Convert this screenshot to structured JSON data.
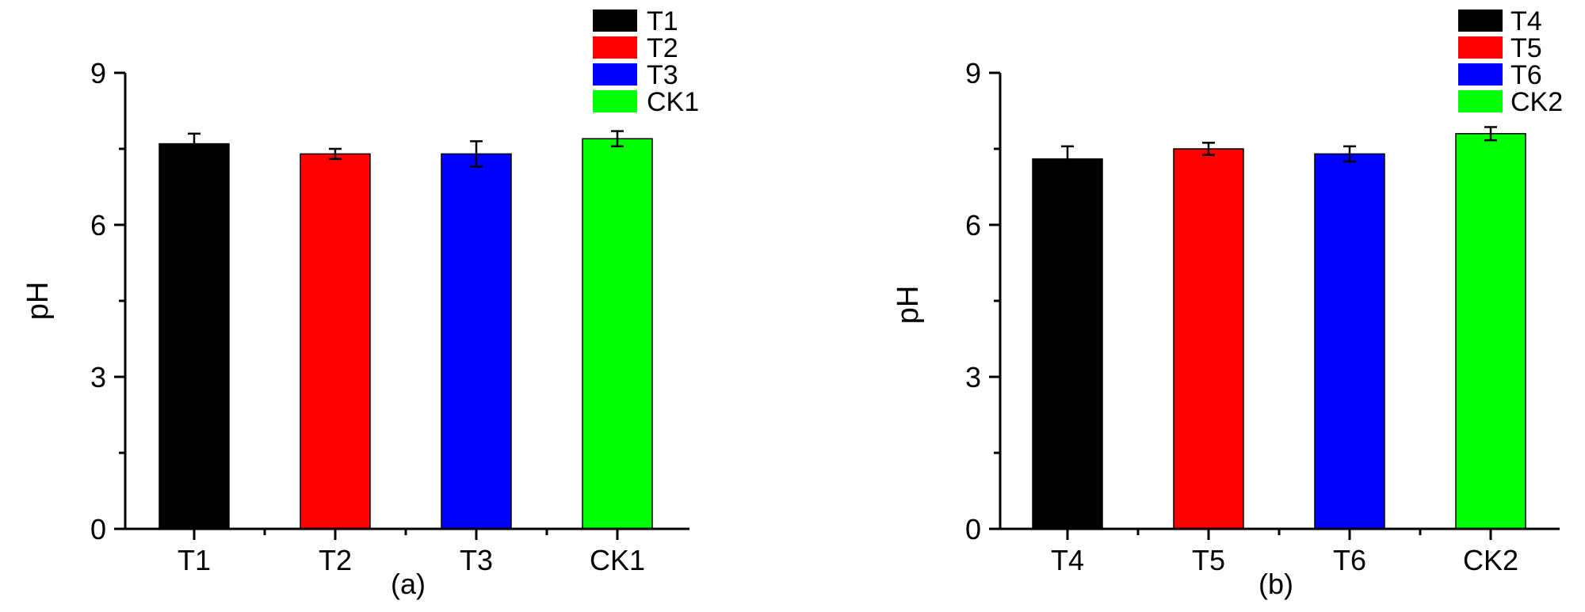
{
  "chart_data": [
    {
      "type": "bar",
      "panel_label": "(a)",
      "categories": [
        "T1",
        "T2",
        "T3",
        "CK1"
      ],
      "values": [
        7.6,
        7.4,
        7.4,
        7.7
      ],
      "errors": [
        0.2,
        0.1,
        0.25,
        0.15
      ],
      "colors": [
        "#000000",
        "#ff0000",
        "#0000ff",
        "#00ff00"
      ],
      "legend": [
        "T1",
        "T2",
        "T3",
        "CK1"
      ],
      "legend_position": "top-right",
      "xlabel": "",
      "ylabel": "pH",
      "ylim": [
        0,
        9
      ],
      "yticks": [
        "0",
        "3",
        "6",
        "9"
      ],
      "grid": false
    },
    {
      "type": "bar",
      "panel_label": "(b)",
      "categories": [
        "T4",
        "T5",
        "T6",
        "CK2"
      ],
      "values": [
        7.3,
        7.5,
        7.4,
        7.8
      ],
      "errors": [
        0.25,
        0.12,
        0.15,
        0.13
      ],
      "colors": [
        "#000000",
        "#ff0000",
        "#0000ff",
        "#00ff00"
      ],
      "legend": [
        "T4",
        "T5",
        "T6",
        "CK2"
      ],
      "legend_position": "top-right",
      "xlabel": "",
      "ylabel": "pH",
      "ylim": [
        0,
        9
      ],
      "yticks": [
        "0",
        "3",
        "6",
        "9"
      ],
      "grid": false
    }
  ]
}
